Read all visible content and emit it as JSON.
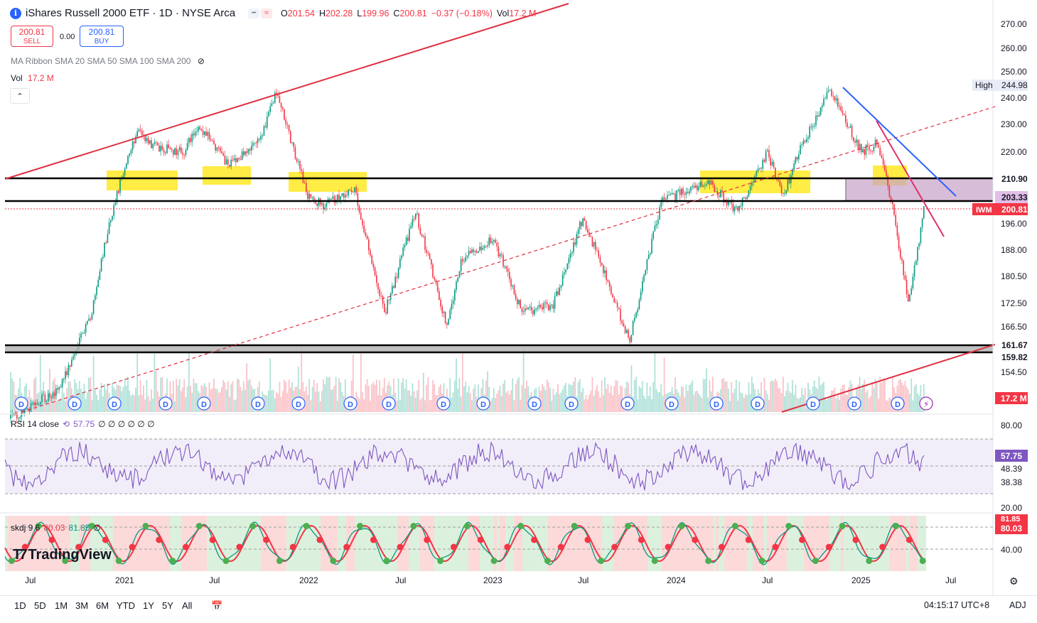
{
  "header": {
    "symbol_badge": "i",
    "title": "iShares Russell 2000 ETF · 1D · NYSE Arca",
    "ohlc": {
      "o_label": "O",
      "o": "201.54",
      "h_label": "H",
      "h": "202.28",
      "l_label": "L",
      "l": "199.96",
      "c_label": "C",
      "c": "200.81",
      "change": "−0.37 (−0.18%)",
      "vol_label": "Vol",
      "vol": "17.2 M"
    },
    "sell_price": "200.81",
    "sell_label": "SELL",
    "spread": "0.00",
    "buy_price": "200.81",
    "buy_label": "BUY"
  },
  "indicators": {
    "ma_ribbon": "MA Ribbon SMA 20 SMA 50 SMA 100 SMA 200",
    "vol_label": "Vol",
    "vol_value": "17.2 M",
    "rsi_label": "RSI 14 close",
    "rsi_value": "57.75",
    "rsi_extra": "∅ ∅ ∅ ∅ ∅ ∅",
    "skdj_label": "skdj 9 6",
    "skdj_k": "80.03",
    "skdj_d": "81.85",
    "skdj_extra": "∅"
  },
  "price_axis": {
    "ticks": [
      "270.00",
      "260.00",
      "250.00",
      "240.00",
      "230.00",
      "220.00",
      "196.00",
      "188.00",
      "180.50",
      "172.50",
      "166.50",
      "154.50"
    ],
    "high_label": "High",
    "high_value": "244.98",
    "level_labels": [
      "210.90",
      "203.33",
      "161.67",
      "159.82"
    ],
    "iwm_label": "IWM",
    "iwm_value": "200.81",
    "vol_badge": "17.2 M"
  },
  "rsi_axis": {
    "ticks": [
      "80.00",
      "48.39",
      "38.38",
      "20.00"
    ],
    "current": "57.75"
  },
  "skdj_axis": {
    "ticks": [
      "40.00"
    ],
    "v1": "81.85",
    "v2": "80.03"
  },
  "time_axis": {
    "labels": [
      "Jul",
      "2021",
      "Jul",
      "2022",
      "Jul",
      "2023",
      "Jul",
      "2024",
      "Jul",
      "2025",
      "Jul"
    ]
  },
  "timeframes": [
    "1D",
    "5D",
    "1M",
    "3M",
    "6M",
    "YTD",
    "1Y",
    "5Y",
    "All"
  ],
  "footer": {
    "clock": "04:15:17 UTC+8",
    "adj": "ADJ"
  },
  "logo_text": "TradingView",
  "dividend_marker": "D",
  "colors": {
    "up": "#089981",
    "down": "#f23645",
    "trend": "#e03040",
    "resistance": "#2962ff",
    "highlight": "#ffeb3b",
    "zone": "#c8a2c8",
    "rsi": "#7e57c2"
  },
  "chart_data": {
    "type": "candlestick",
    "title": "iShares Russell 2000 ETF · 1D · NYSE Arca",
    "timeframe": "1D",
    "last_close": 200.81,
    "period_high": 244.98,
    "horizontal_levels": [
      210.9,
      203.33,
      161.67,
      159.82
    ],
    "ylim": [
      150,
      275
    ],
    "x_labels": [
      "Jul",
      "2021",
      "Jul",
      "2022",
      "Jul",
      "2023",
      "Jul",
      "2024",
      "Jul",
      "2025",
      "Jul"
    ],
    "path": [
      {
        "x": "2020-06",
        "y": 142
      },
      {
        "x": "2020-09",
        "y": 150
      },
      {
        "x": "2020-11",
        "y": 170
      },
      {
        "x": "2020-12",
        "y": 195
      },
      {
        "x": "2021-01",
        "y": 215
      },
      {
        "x": "2021-02",
        "y": 228
      },
      {
        "x": "2021-03",
        "y": 222
      },
      {
        "x": "2021-05",
        "y": 220
      },
      {
        "x": "2021-06",
        "y": 230
      },
      {
        "x": "2021-08",
        "y": 215
      },
      {
        "x": "2021-10",
        "y": 225
      },
      {
        "x": "2021-11",
        "y": 243
      },
      {
        "x": "2022-01",
        "y": 205
      },
      {
        "x": "2022-02",
        "y": 202
      },
      {
        "x": "2022-04",
        "y": 208
      },
      {
        "x": "2022-06",
        "y": 170
      },
      {
        "x": "2022-08",
        "y": 200
      },
      {
        "x": "2022-10",
        "y": 167
      },
      {
        "x": "2022-11",
        "y": 185
      },
      {
        "x": "2023-01",
        "y": 192
      },
      {
        "x": "2023-03",
        "y": 170
      },
      {
        "x": "2023-05",
        "y": 172
      },
      {
        "x": "2023-07",
        "y": 198
      },
      {
        "x": "2023-10",
        "y": 163
      },
      {
        "x": "2023-12",
        "y": 203
      },
      {
        "x": "2024-03",
        "y": 210
      },
      {
        "x": "2024-05",
        "y": 200
      },
      {
        "x": "2024-07",
        "y": 220
      },
      {
        "x": "2024-08",
        "y": 205
      },
      {
        "x": "2024-09",
        "y": 220
      },
      {
        "x": "2024-11",
        "y": 243
      },
      {
        "x": "2025-01",
        "y": 220
      },
      {
        "x": "2025-02",
        "y": 223
      },
      {
        "x": "2025-03",
        "y": 202
      },
      {
        "x": "2025-04",
        "y": 172
      },
      {
        "x": "2025-05",
        "y": 200.81
      }
    ]
  }
}
